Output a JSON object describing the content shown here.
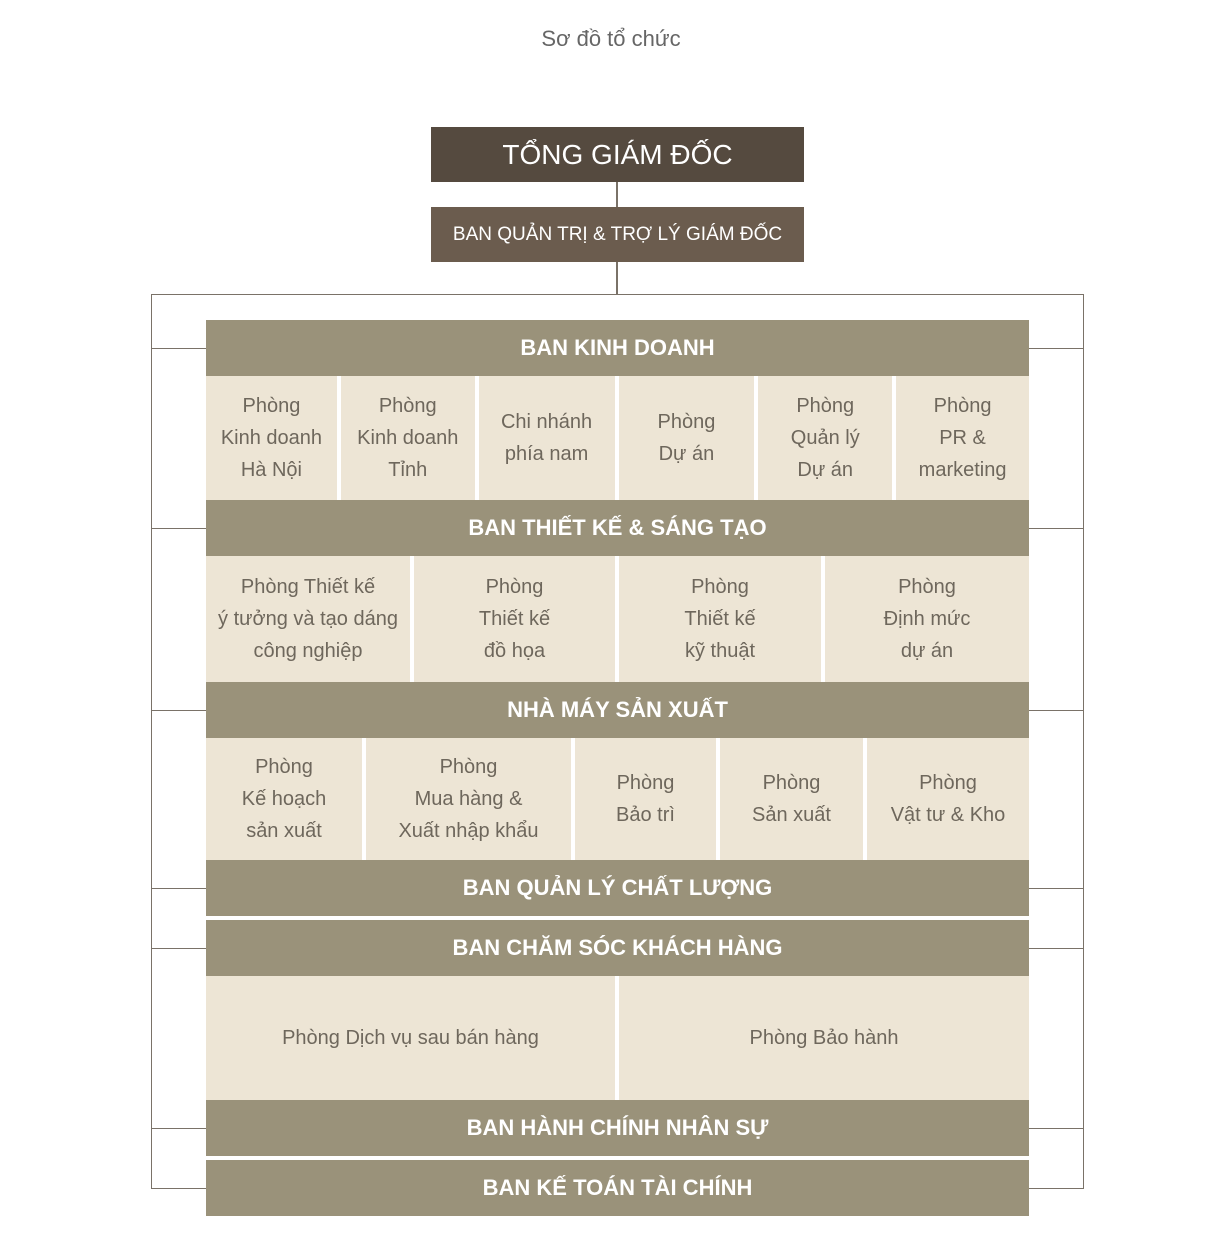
{
  "title": "Sơ đồ tổ chức",
  "ceo": "TỔNG GIÁM ĐỐC",
  "admin": "BAN QUẢN TRỊ & TRỢ LÝ GIÁM ĐỐC",
  "colors": {
    "ceo": "#554a3f",
    "admin": "#6b5c4e",
    "division": "#9a927a",
    "department": "#ede5d5"
  },
  "divisions": [
    {
      "name": "BAN KINH DOANH",
      "departments": [
        "Phòng\nKinh doanh\nHà Nội",
        "Phòng\nKinh doanh\nTỉnh",
        "Chi nhánh\nphía nam",
        "Phòng\nDự án",
        "Phòng\nQuản lý\nDự án",
        "Phòng\nPR &\nmarketing"
      ]
    },
    {
      "name": "BAN THIẾT KẾ & SÁNG TẠO",
      "departments": [
        "Phòng Thiết kế\ný tưởng và tạo dáng\ncông nghiệp",
        "Phòng\nThiết kế\nđồ họa",
        "Phòng\nThiết kế\nkỹ thuật",
        "Phòng\nĐịnh mức\ndự án"
      ]
    },
    {
      "name": "NHÀ MÁY SẢN XUẤT",
      "departments": [
        "Phòng\nKế hoạch\nsản xuất",
        "Phòng\nMua hàng &\nXuất nhập khẩu",
        "Phòng\nBảo trì",
        "Phòng\nSản xuất",
        "Phòng\nVật tư & Kho"
      ]
    },
    {
      "name": "BAN QUẢN LÝ CHẤT LƯỢNG",
      "departments": []
    },
    {
      "name": "BAN CHĂM SÓC KHÁCH HÀNG",
      "departments": [
        "Phòng Dịch vụ sau bán hàng",
        "Phòng Bảo hành"
      ]
    },
    {
      "name": "BAN HÀNH CHÍNH NHÂN SỰ",
      "departments": []
    },
    {
      "name": "BAN KẾ TOÁN TÀI CHÍNH",
      "departments": []
    }
  ]
}
